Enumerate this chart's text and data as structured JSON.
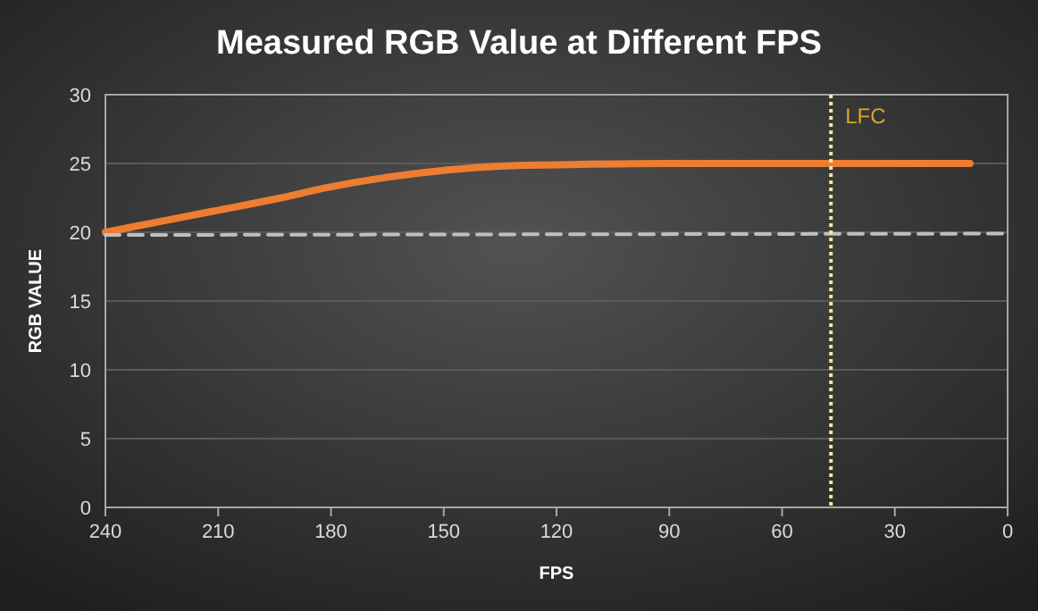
{
  "chart_data": {
    "type": "line",
    "title": "Measured RGB Value at Different FPS",
    "xlabel": "FPS",
    "ylabel": "RGB VALUE",
    "xlim": [
      240,
      0
    ],
    "xticks": [
      240,
      210,
      180,
      150,
      120,
      90,
      60,
      30,
      0
    ],
    "ylim": [
      0,
      30
    ],
    "yticks": [
      0,
      5,
      10,
      15,
      20,
      25,
      30
    ],
    "grid": "y",
    "marker": "none",
    "series": [
      {
        "color": "#ed7d31",
        "line_style": "solid",
        "x": [
          240,
          225,
          210,
          195,
          180,
          165,
          150,
          135,
          120,
          90,
          60,
          30,
          10
        ],
        "values": [
          20,
          20.8,
          21.6,
          22.4,
          23.3,
          24,
          24.5,
          24.8,
          24.9,
          25,
          25,
          25,
          25
        ]
      },
      {
        "color": "#bfbfbf",
        "line_style": "dashed",
        "x": [
          240,
          0
        ],
        "values": [
          19.8,
          19.9
        ]
      }
    ],
    "ref_lines": [
      {
        "axis": "x",
        "value": 47,
        "label": "LFC",
        "color": "#ffe699",
        "line_style": "dotted"
      }
    ]
  }
}
